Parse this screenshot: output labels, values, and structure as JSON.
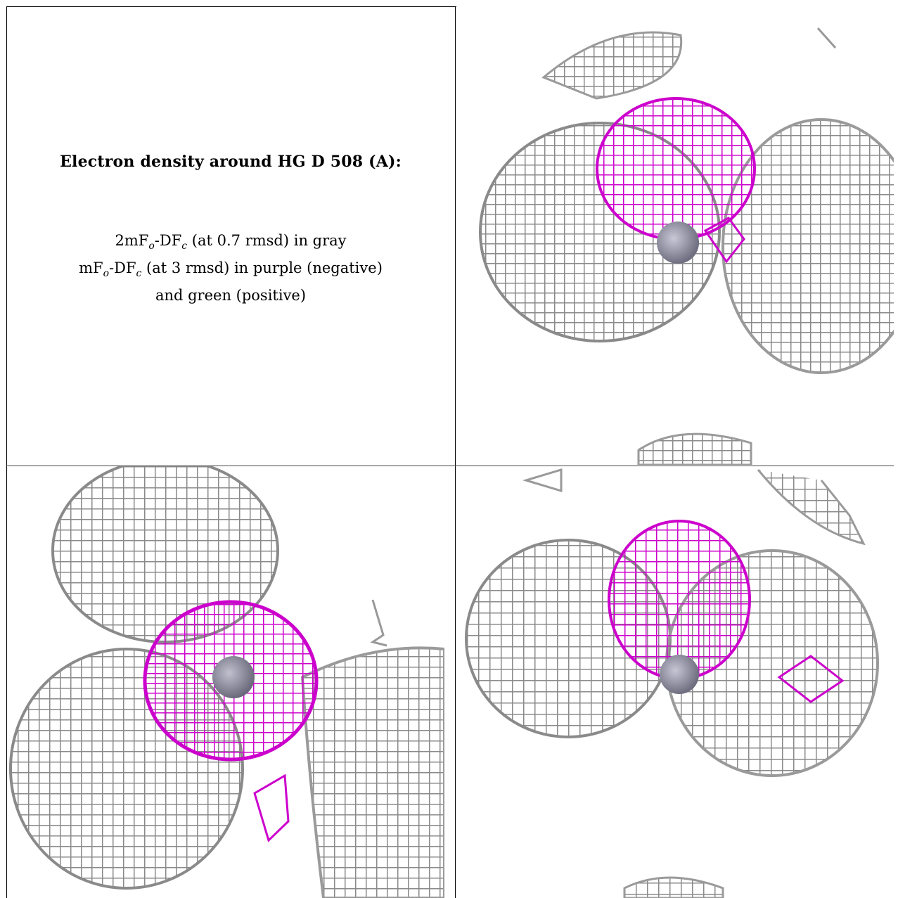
{
  "caption": {
    "title": "Electron density around HG D 508 (A):",
    "legend_line1": {
      "a": "2mF",
      "a_sub": "o",
      "b": "-DF",
      "b_sub": "c",
      "rest": " (at 0.7 rmsd) in gray"
    },
    "legend_line2": {
      "a": "mF",
      "a_sub": "o",
      "b": "-DF",
      "b_sub": "c",
      "rest": " (at 3 rmsd) in purple (negative)"
    },
    "legend_line3": "and green (positive)"
  },
  "colors": {
    "mesh_gray": "#9a9a9a",
    "mesh_purple": "#cc00cc",
    "atom": "#8c8c9c",
    "background": "#ffffff"
  },
  "views": [
    {
      "name": "view-top-right"
    },
    {
      "name": "view-bottom-left"
    },
    {
      "name": "view-bottom-right"
    }
  ]
}
